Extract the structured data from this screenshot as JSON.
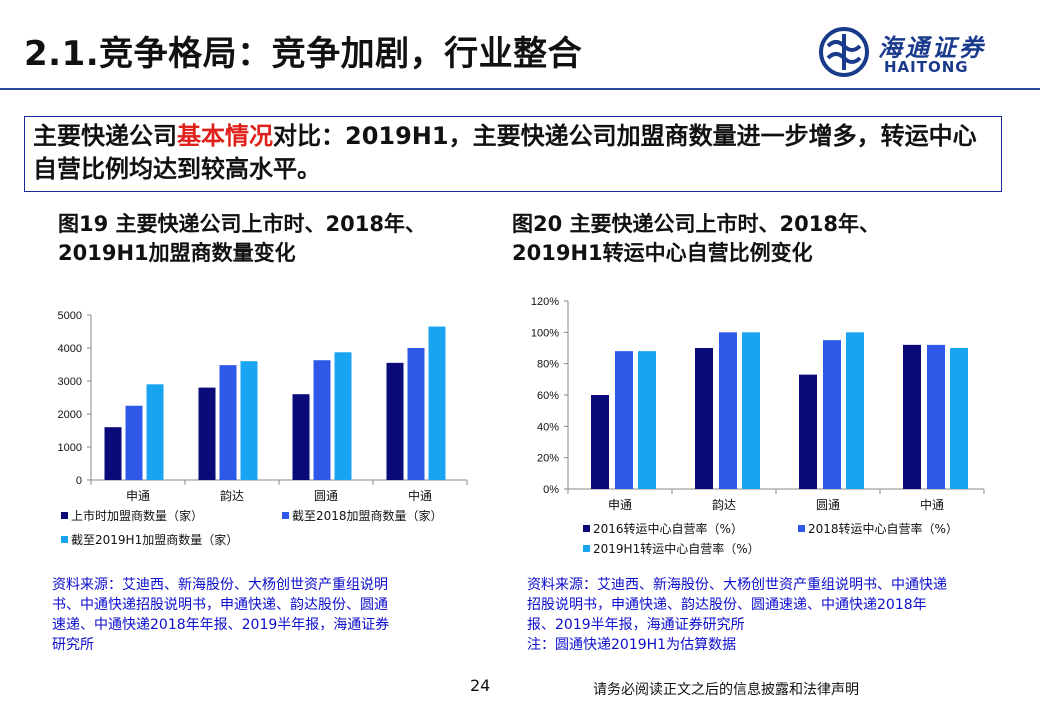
{
  "header": {
    "title": "2.1.竞争格局：竞争加剧，行业整合",
    "logo_cn": "海通证券",
    "logo_en": "HAITONG"
  },
  "summary": {
    "part1": "主要快递公司",
    "highlight": "基本情况",
    "part2": "对比：2019H1，主要快递公司加盟商数量进一步增多，转运中心自营比例均达到较高水平。"
  },
  "colors": {
    "series1": "#0a0a78",
    "series2": "#2e59e8",
    "series3": "#18a4f0",
    "brand": "#1a3a8c",
    "highlight": "#e0201a"
  },
  "figures": [
    {
      "title_line1": "图19 主要快递公司上市时、2018年、",
      "title_line2": "2019H1加盟商数量变化",
      "source_lines": [
        "资料来源：艾迪西、新海股份、大杨创世资产重组说明",
        "书、中通快递招股说明书，申通快递、韵达股份、圆通",
        "速递、中通快递2018年年报、2019半年报，海通证券",
        "研究所"
      ]
    },
    {
      "title_line1": "图20 主要快递公司上市时、2018年、",
      "title_line2": "2019H1转运中心自营比例变化",
      "source_lines": [
        "资料来源：艾迪西、新海股份、大杨创世资产重组说明书、中通快递",
        "招股说明书，申通快递、韵达股份、圆通速递、中通快递2018年",
        "报、2019半年报，海通证券研究所",
        "注：圆通快递2019H1为估算数据"
      ]
    }
  ],
  "chart_data": [
    {
      "type": "bar",
      "categories": [
        "申通",
        "韵达",
        "圆通",
        "中通"
      ],
      "series": [
        {
          "name": "上市时加盟商数量（家）",
          "values": [
            1600,
            2800,
            2600,
            3550
          ]
        },
        {
          "name": "截至2018加盟商数量（家）",
          "values": [
            2250,
            3480,
            3630,
            4000
          ]
        },
        {
          "name": "截至2019H1加盟商数量（家）",
          "values": [
            2900,
            3600,
            3870,
            4650
          ]
        }
      ],
      "yticks": [
        "0",
        "1000",
        "2000",
        "3000",
        "4000",
        "5000"
      ],
      "ylim": [
        0,
        5000
      ],
      "legend_position": "bottom"
    },
    {
      "type": "bar",
      "categories": [
        "申通",
        "韵达",
        "圆通",
        "中通"
      ],
      "series": [
        {
          "name": "2016转运中心自营率（%）",
          "values": [
            60,
            90,
            73,
            92
          ]
        },
        {
          "name": "2018转运中心自营率（%）",
          "values": [
            88,
            100,
            95,
            92
          ]
        },
        {
          "name": "2019H1转运中心自营率（%）",
          "values": [
            88,
            100,
            100,
            90
          ]
        }
      ],
      "yticks": [
        "0%",
        "20%",
        "40%",
        "60%",
        "80%",
        "100%",
        "120%"
      ],
      "ylim": [
        0,
        120
      ],
      "legend_position": "bottom"
    }
  ],
  "footer": {
    "page_number": "24",
    "disclaimer": "请务必阅读正文之后的信息披露和法律声明"
  }
}
